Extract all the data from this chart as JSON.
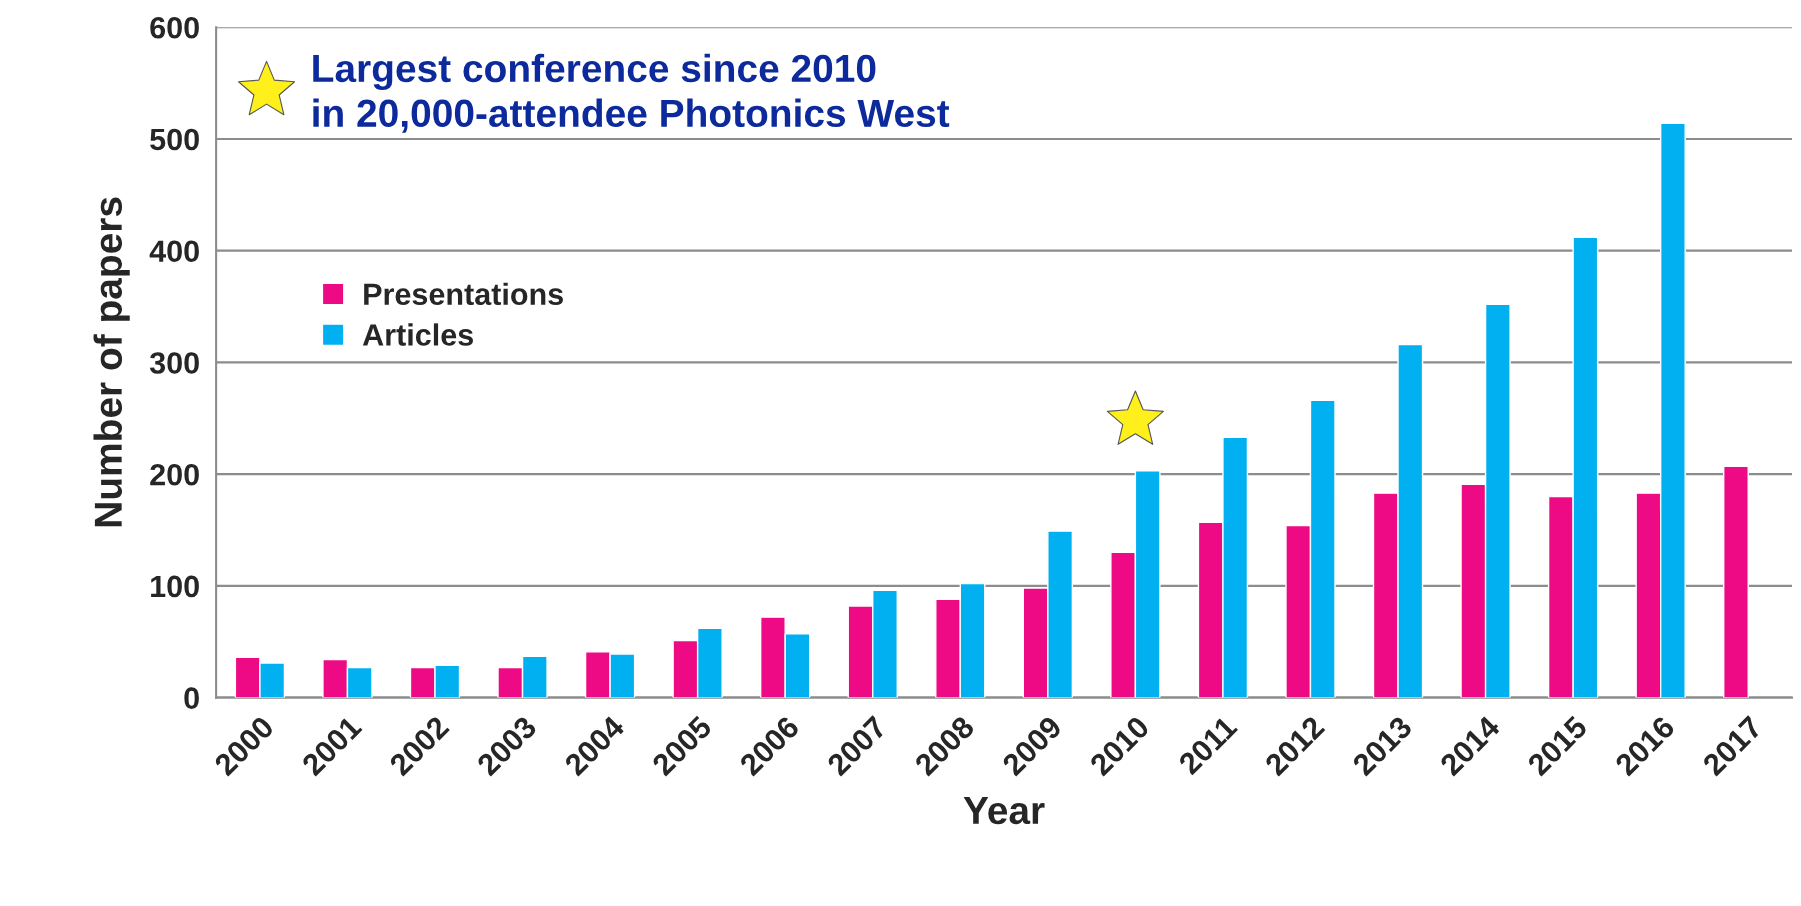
{
  "chart_data": {
    "type": "bar",
    "xlabel": "Year",
    "ylabel": "Number of papers",
    "categories": [
      "2000",
      "2001",
      "2002",
      "2003",
      "2004",
      "2005",
      "2006",
      "2007",
      "2008",
      "2009",
      "2010",
      "2011",
      "2012",
      "2013",
      "2014",
      "2015",
      "2016",
      "2017"
    ],
    "series": [
      {
        "name": "Presentations",
        "color": "#ee0a85",
        "values": [
          36,
          34,
          27,
          27,
          41,
          51,
          72,
          82,
          88,
          98,
          130,
          157,
          154,
          183,
          191,
          180,
          183,
          207
        ]
      },
      {
        "name": "Articles",
        "color": "#00b0f0",
        "values": [
          31,
          27,
          29,
          37,
          39,
          62,
          57,
          96,
          102,
          149,
          203,
          233,
          266,
          316,
          352,
          412,
          514,
          null
        ]
      }
    ],
    "annotations": [
      "Largest conference since 2010\nin 20,000-attendee Photonics West"
    ],
    "ylim": [
      0,
      600
    ],
    "yticks": [
      0,
      100,
      200,
      300,
      400,
      500,
      600
    ],
    "grid": "y",
    "legend": "top left"
  }
}
